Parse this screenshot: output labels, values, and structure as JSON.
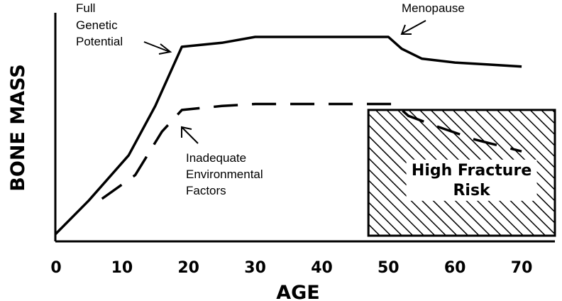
{
  "chart_data": {
    "type": "line",
    "title": "",
    "xlabel": "AGE",
    "ylabel": "BONE MASS",
    "xlim": [
      0,
      75
    ],
    "ylim": [
      0,
      100
    ],
    "x_ticks": [
      "0",
      "10",
      "20",
      "30",
      "40",
      "50",
      "60",
      "70"
    ],
    "grid": false,
    "series": [
      {
        "name": "",
        "style": "solid",
        "x": [
          0,
          5,
          11,
          15,
          19,
          25,
          30,
          40,
          50,
          52,
          55,
          60,
          65,
          70
        ],
        "y": [
          0,
          17,
          40,
          65,
          95,
          97,
          100,
          100,
          100,
          94,
          89,
          87,
          86,
          85
        ]
      },
      {
        "name": "",
        "style": "dashed",
        "x": [
          7,
          12,
          16,
          19,
          25,
          30,
          40,
          51,
          53,
          57,
          63,
          70
        ],
        "y": [
          18,
          30,
          52,
          63,
          65,
          66,
          66,
          66,
          60,
          55,
          48,
          42
        ]
      }
    ],
    "annotations": [
      {
        "lines": [
          "Full",
          "Genetic",
          "Potential"
        ],
        "points_to": [
          19,
          95
        ]
      },
      {
        "lines": [
          "Menopause"
        ],
        "points_to": [
          50,
          100
        ]
      },
      {
        "lines": [
          "Inadequate",
          "Environmental",
          "Factors"
        ],
        "points_to": [
          19,
          58
        ]
      }
    ],
    "region": {
      "label_lines": [
        "High Fracture",
        "Risk"
      ],
      "x_range": [
        47,
        75
      ],
      "y_range": [
        0,
        63
      ],
      "fill": "hatched"
    }
  }
}
